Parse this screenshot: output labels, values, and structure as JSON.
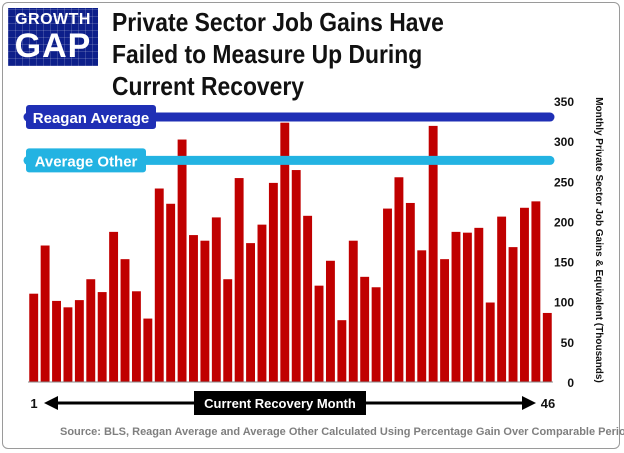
{
  "header": {
    "logo_top": "GROWTH",
    "logo_bottom": "GAP",
    "title": "Private Sector Job Gains Have Failed to Measure Up During Current Recovery"
  },
  "source": "Source:  BLS, Reagan Average and Average Other Calculated Using Percentage Gain Over Comparable Period",
  "colors": {
    "bar": "#c00000",
    "reagan": "#1f2fb5",
    "other": "#23b3e2",
    "logo_bg": "#0d1f8a"
  },
  "chart_data": {
    "type": "bar",
    "title": "Private Sector Job Gains Have Failed to Measure Up During Current Recovery",
    "xlabel": "Current Recovery Month",
    "ylabel": "Monthly Private Sector Job Gains & Equivalent (Thousands)",
    "x_start_label": "1",
    "x_end_label": "46",
    "ylim": [
      0,
      350
    ],
    "yticks": [
      0,
      50,
      100,
      150,
      200,
      250,
      300,
      350
    ],
    "grid": false,
    "values": [
      110,
      170,
      101,
      93,
      102,
      128,
      112,
      187,
      153,
      113,
      79,
      241,
      222,
      302,
      183,
      176,
      205,
      128,
      254,
      173,
      196,
      248,
      323,
      264,
      207,
      120,
      151,
      77,
      176,
      131,
      118,
      216,
      255,
      223,
      164,
      319,
      153,
      187,
      186,
      192,
      99,
      206,
      168,
      217,
      225,
      86
    ],
    "reference_lines": [
      {
        "name": "Reagan Average",
        "value": 330
      },
      {
        "name": "Average Other",
        "value": 276
      }
    ]
  }
}
